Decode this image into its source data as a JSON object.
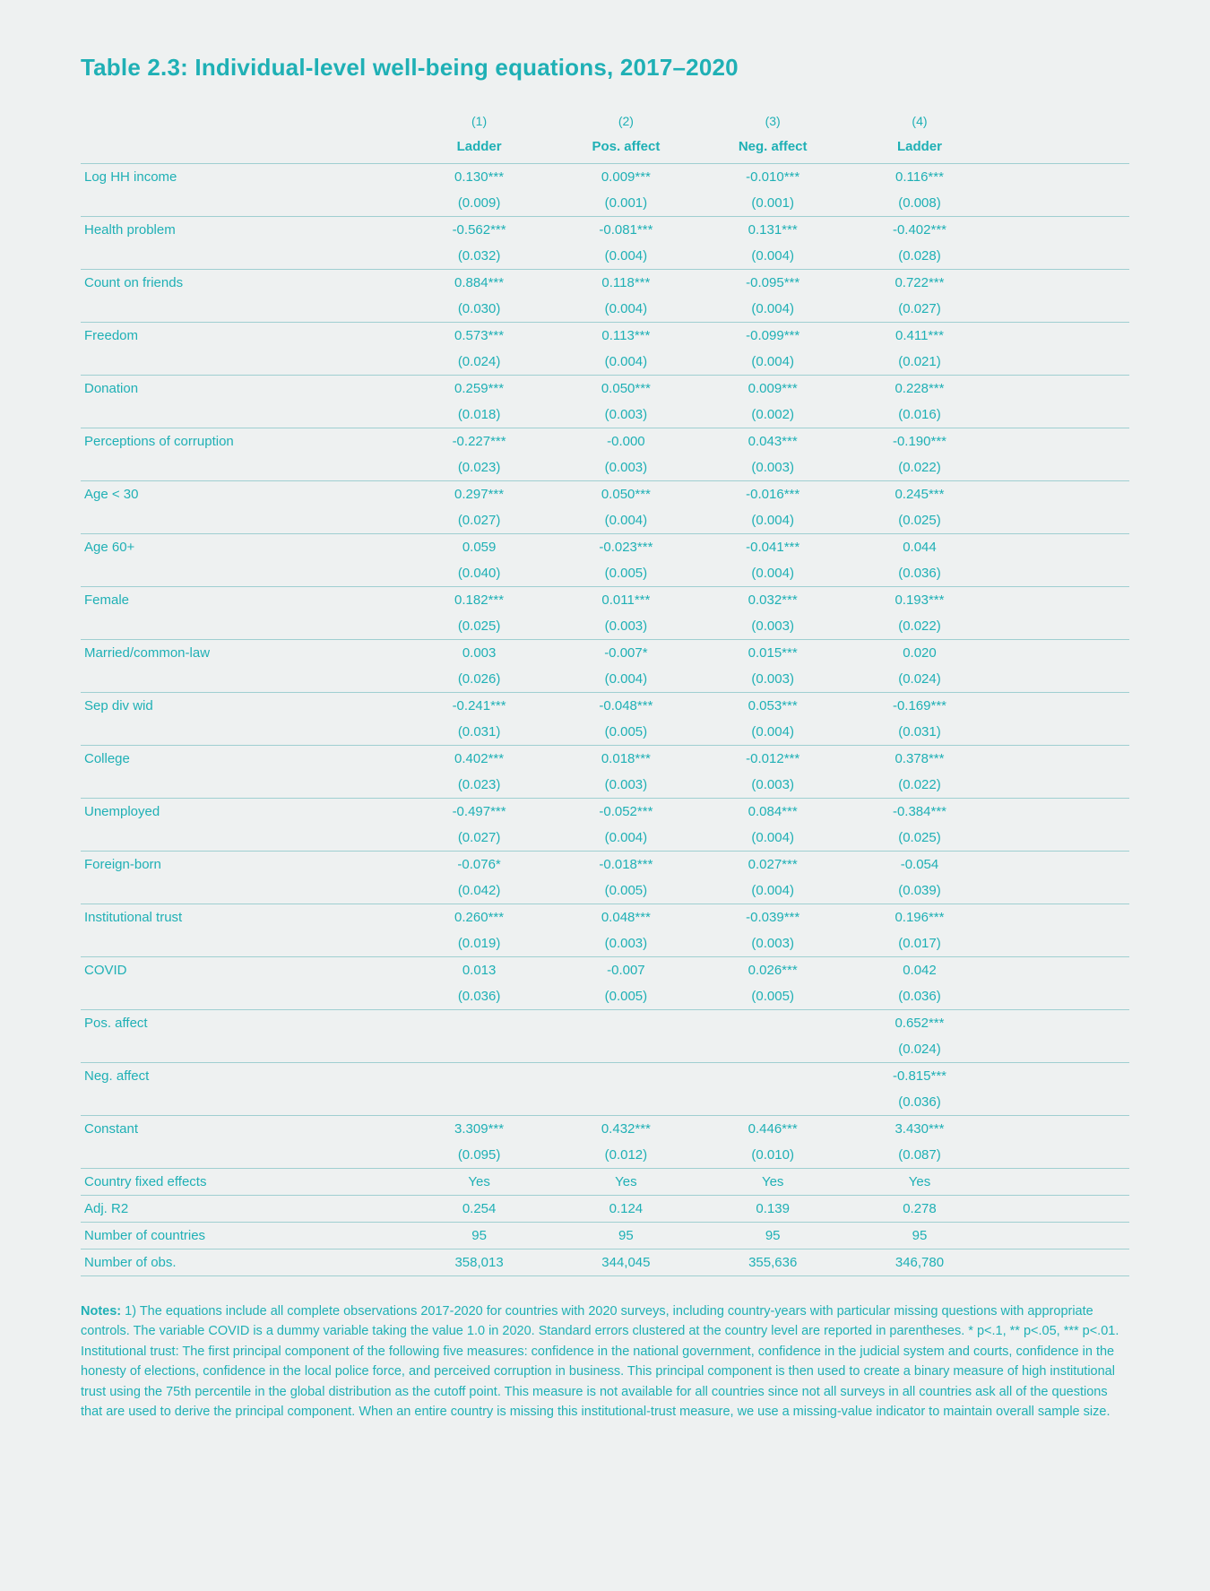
{
  "title": "Table 2.3: Individual-level well-being equations, 2017–2020",
  "table": {
    "type": "table",
    "text_color": "#1fb0b5",
    "rule_color": "#9fcfd1",
    "background_color": "#eef1f1",
    "font_size_pt": 11,
    "col_numbers": [
      "(1)",
      "(2)",
      "(3)",
      "(4)"
    ],
    "col_headers": [
      "Ladder",
      "Pos. affect",
      "Neg. affect",
      "Ladder"
    ],
    "vars": [
      {
        "label": "Log HH income",
        "coef": [
          "0.130***",
          "0.009***",
          "-0.010***",
          "0.116***"
        ],
        "se": [
          "(0.009)",
          "(0.001)",
          "(0.001)",
          "(0.008)"
        ]
      },
      {
        "label": "Health problem",
        "coef": [
          "-0.562***",
          "-0.081***",
          "0.131***",
          "-0.402***"
        ],
        "se": [
          "(0.032)",
          "(0.004)",
          "(0.004)",
          "(0.028)"
        ]
      },
      {
        "label": "Count on friends",
        "coef": [
          "0.884***",
          "0.118***",
          "-0.095***",
          "0.722***"
        ],
        "se": [
          "(0.030)",
          "(0.004)",
          "(0.004)",
          "(0.027)"
        ]
      },
      {
        "label": "Freedom",
        "coef": [
          "0.573***",
          "0.113***",
          "-0.099***",
          "0.411***"
        ],
        "se": [
          "(0.024)",
          "(0.004)",
          "(0.004)",
          "(0.021)"
        ]
      },
      {
        "label": "Donation",
        "coef": [
          "0.259***",
          "0.050***",
          "0.009***",
          "0.228***"
        ],
        "se": [
          "(0.018)",
          "(0.003)",
          "(0.002)",
          "(0.016)"
        ]
      },
      {
        "label": "Perceptions of corruption",
        "coef": [
          "-0.227***",
          "-0.000",
          "0.043***",
          "-0.190***"
        ],
        "se": [
          "(0.023)",
          "(0.003)",
          "(0.003)",
          "(0.022)"
        ]
      },
      {
        "label": "Age < 30",
        "coef": [
          "0.297***",
          "0.050***",
          "-0.016***",
          "0.245***"
        ],
        "se": [
          "(0.027)",
          "(0.004)",
          "(0.004)",
          "(0.025)"
        ]
      },
      {
        "label": "Age 60+",
        "coef": [
          "0.059",
          "-0.023***",
          "-0.041***",
          "0.044"
        ],
        "se": [
          "(0.040)",
          "(0.005)",
          "(0.004)",
          "(0.036)"
        ]
      },
      {
        "label": "Female",
        "coef": [
          "0.182***",
          "0.011***",
          "0.032***",
          "0.193***"
        ],
        "se": [
          "(0.025)",
          "(0.003)",
          "(0.003)",
          "(0.022)"
        ]
      },
      {
        "label": "Married/common-law",
        "coef": [
          "0.003",
          "-0.007*",
          "0.015***",
          "0.020"
        ],
        "se": [
          "(0.026)",
          "(0.004)",
          "(0.003)",
          "(0.024)"
        ]
      },
      {
        "label": "Sep div wid",
        "coef": [
          "-0.241***",
          "-0.048***",
          "0.053***",
          "-0.169***"
        ],
        "se": [
          "(0.031)",
          "(0.005)",
          "(0.004)",
          "(0.031)"
        ]
      },
      {
        "label": "College",
        "coef": [
          "0.402***",
          "0.018***",
          "-0.012***",
          "0.378***"
        ],
        "se": [
          "(0.023)",
          "(0.003)",
          "(0.003)",
          "(0.022)"
        ]
      },
      {
        "label": "Unemployed",
        "coef": [
          "-0.497***",
          "-0.052***",
          "0.084***",
          "-0.384***"
        ],
        "se": [
          "(0.027)",
          "(0.004)",
          "(0.004)",
          "(0.025)"
        ]
      },
      {
        "label": "Foreign-born",
        "coef": [
          "-0.076*",
          "-0.018***",
          "0.027***",
          "-0.054"
        ],
        "se": [
          "(0.042)",
          "(0.005)",
          "(0.004)",
          "(0.039)"
        ]
      },
      {
        "label": "Institutional trust",
        "coef": [
          "0.260***",
          "0.048***",
          "-0.039***",
          "0.196***"
        ],
        "se": [
          "(0.019)",
          "(0.003)",
          "(0.003)",
          "(0.017)"
        ]
      },
      {
        "label": "COVID",
        "coef": [
          "0.013",
          "-0.007",
          "0.026***",
          "0.042"
        ],
        "se": [
          "(0.036)",
          "(0.005)",
          "(0.005)",
          "(0.036)"
        ]
      },
      {
        "label": "Pos. affect",
        "coef": [
          "",
          "",
          "",
          "0.652***"
        ],
        "se": [
          "",
          "",
          "",
          "(0.024)"
        ]
      },
      {
        "label": "Neg. affect",
        "coef": [
          "",
          "",
          "",
          "-0.815***"
        ],
        "se": [
          "",
          "",
          "",
          "(0.036)"
        ]
      },
      {
        "label": "Constant",
        "coef": [
          "3.309***",
          "0.432***",
          "0.446***",
          "3.430***"
        ],
        "se": [
          "(0.095)",
          "(0.012)",
          "(0.010)",
          "(0.087)"
        ]
      }
    ],
    "footer": [
      {
        "label": "Country fixed effects",
        "vals": [
          "Yes",
          "Yes",
          "Yes",
          "Yes"
        ]
      },
      {
        "label": "Adj. R2",
        "vals": [
          "0.254",
          "0.124",
          "0.139",
          "0.278"
        ]
      },
      {
        "label": "Number of countries",
        "vals": [
          "95",
          "95",
          "95",
          "95"
        ]
      },
      {
        "label": "Number of obs.",
        "vals": [
          "358,013",
          "344,045",
          "355,636",
          "346,780"
        ]
      }
    ]
  },
  "notes_label": "Notes:",
  "notes_text": " 1) The equations include all complete observations 2017-2020 for countries with 2020 surveys, including country-years with particular missing questions with appropriate controls. The variable COVID is a dummy variable taking the value 1.0 in 2020. Standard errors clustered at the country level are reported in parentheses. * p<.1, ** p<.05, *** p<.01. Institutional trust: The first principal component of the following five measures: confidence in the national government, confidence in the judicial system and courts, confidence in the honesty of elections, confidence in the local police force, and perceived corruption in business. This principal component is then used to create a binary measure of high institutional trust using the 75th percentile in the global distribution as the cutoff point. This measure is not available for all countries since not all surveys in all countries ask all of the questions that are used to derive the principal component. When an entire country is missing this institutional-trust measure, we use a missing-value indicator to maintain overall sample size."
}
